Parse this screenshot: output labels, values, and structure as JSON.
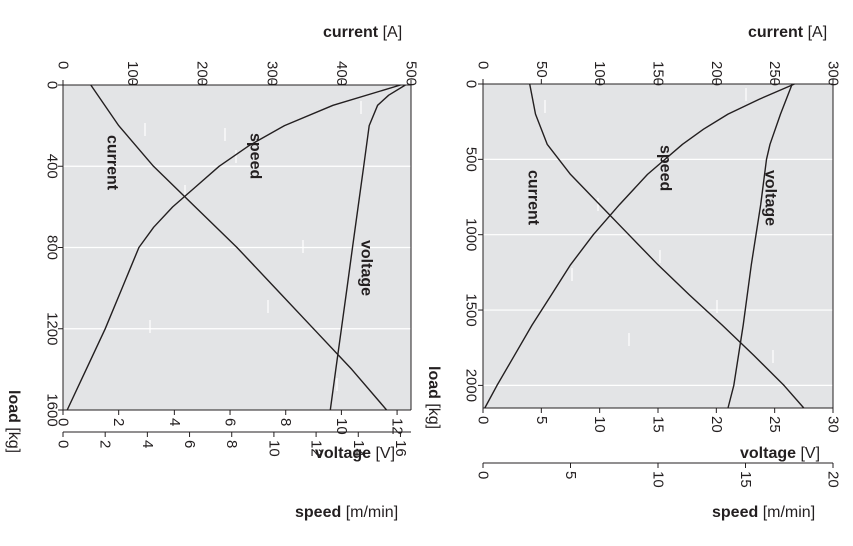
{
  "chart_data": [
    {
      "type": "line",
      "id": "left",
      "orientation": "rotated-90-clockwise",
      "axes": {
        "load": {
          "title": "load",
          "unit": "[kg]",
          "range": [
            0,
            1600
          ],
          "ticks": [
            "0",
            "400",
            "800",
            "1200",
            "1600"
          ]
        },
        "current": {
          "title": "current",
          "unit": "[A]",
          "range": [
            0,
            500
          ],
          "ticks": [
            "0",
            "100",
            "200",
            "300",
            "400",
            "500"
          ]
        },
        "voltage": {
          "title": "voltage",
          "unit": "[V]",
          "range": [
            0,
            12.5
          ],
          "ticks": [
            "0",
            "2",
            "4",
            "6",
            "8",
            "10",
            "12"
          ]
        },
        "speed": {
          "title": "speed",
          "unit": "[m/min]",
          "range": [
            0,
            16.5
          ],
          "ticks": [
            "0",
            "2",
            "4",
            "6",
            "8",
            "10",
            "12",
            "14",
            "16"
          ]
        }
      },
      "series": [
        {
          "name": "current",
          "axis": "current",
          "load": [
            0,
            200,
            400,
            600,
            800,
            1000,
            1200,
            1400,
            1600
          ],
          "values": [
            40,
            80,
            130,
            190,
            250,
            305,
            360,
            415,
            465
          ]
        },
        {
          "name": "speed",
          "axis": "speed",
          "load": [
            0,
            100,
            200,
            300,
            400,
            500,
            600,
            700,
            800,
            1000,
            1200,
            1400,
            1600
          ],
          "values": [
            16.0,
            12.8,
            10.5,
            8.8,
            7.4,
            6.3,
            5.2,
            4.3,
            3.6,
            2.8,
            2.0,
            1.1,
            0.2
          ]
        },
        {
          "name": "voltage",
          "axis": "voltage",
          "load": [
            0,
            50,
            100,
            200,
            400,
            600,
            800,
            1000,
            1200,
            1400,
            1600
          ],
          "values": [
            12.3,
            11.7,
            11.3,
            11.0,
            10.8,
            10.6,
            10.4,
            10.2,
            10.0,
            9.8,
            9.6
          ]
        }
      ],
      "curve_labels": [
        "current",
        "speed",
        "voltage"
      ],
      "grid": true
    },
    {
      "type": "line",
      "id": "right",
      "orientation": "rotated-90-clockwise",
      "axes": {
        "load": {
          "title": "load",
          "unit": "[kg]",
          "range": [
            0,
            2150
          ],
          "ticks": [
            "0",
            "500",
            "1000",
            "1500",
            "2000"
          ]
        },
        "current": {
          "title": "current",
          "unit": "[A]",
          "range": [
            0,
            300
          ],
          "ticks": [
            "0",
            "50",
            "100",
            "150",
            "200",
            "250",
            "300"
          ]
        },
        "voltage": {
          "title": "voltage",
          "unit": "[V]",
          "range": [
            0,
            30
          ],
          "ticks": [
            "0",
            "5",
            "10",
            "15",
            "20",
            "25",
            "30"
          ]
        },
        "speed": {
          "title": "speed",
          "unit": "[m/min]",
          "range": [
            0,
            20
          ],
          "ticks": [
            "0",
            "5",
            "10",
            "15",
            "20"
          ]
        }
      },
      "series": [
        {
          "name": "current",
          "axis": "current",
          "load": [
            0,
            200,
            400,
            600,
            800,
            1000,
            1200,
            1400,
            1600,
            1800,
            2000,
            2150
          ],
          "values": [
            40,
            45,
            55,
            75,
            100,
            125,
            150,
            177,
            205,
            232,
            258,
            275
          ]
        },
        {
          "name": "speed",
          "axis": "speed",
          "load": [
            0,
            100,
            200,
            300,
            400,
            600,
            800,
            1000,
            1200,
            1400,
            1600,
            1800,
            2000,
            2150
          ],
          "values": [
            17.8,
            15.8,
            14.0,
            12.6,
            11.4,
            9.4,
            7.8,
            6.3,
            5.0,
            3.9,
            2.8,
            1.8,
            0.8,
            0.1
          ]
        },
        {
          "name": "voltage",
          "axis": "voltage",
          "load": [
            0,
            200,
            400,
            500,
            800,
            1200,
            1600,
            2000,
            2150
          ],
          "values": [
            26.5,
            25.5,
            24.6,
            24.3,
            23.8,
            23.0,
            22.3,
            21.5,
            21.0
          ]
        }
      ],
      "curve_labels": [
        "current",
        "speed",
        "voltage"
      ],
      "grid": true
    }
  ]
}
